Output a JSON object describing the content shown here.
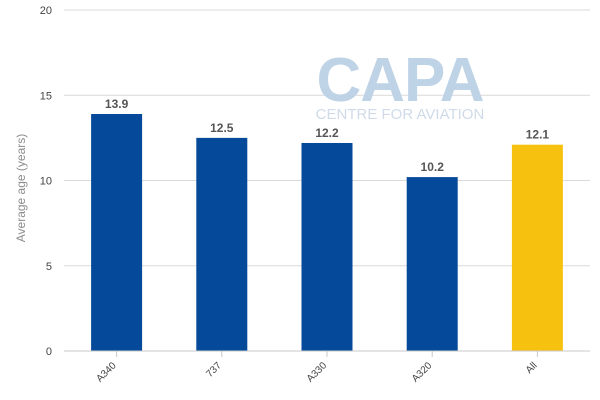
{
  "watermark": {
    "brand": "CAPA",
    "subtitle": "CENTRE FOR AVIATION"
  },
  "colors": {
    "primary_bar": "#054a9a",
    "highlight_bar": "#f7c20f",
    "grid": "#d9d9d9",
    "axis": "#c8c8c8"
  },
  "chart_data": {
    "type": "bar",
    "title": "",
    "xlabel": "",
    "ylabel": "Average age (years)",
    "ylim": [
      0,
      20
    ],
    "yticks": [
      0,
      5,
      10,
      15,
      20
    ],
    "grid": true,
    "categories": [
      "A340",
      "737",
      "A330",
      "A320",
      "All"
    ],
    "values": [
      13.9,
      12.5,
      12.2,
      10.2,
      12.1
    ],
    "value_labels": [
      "13.9",
      "12.5",
      "12.2",
      "10.2",
      "12.1"
    ],
    "highlight_category": "All"
  }
}
